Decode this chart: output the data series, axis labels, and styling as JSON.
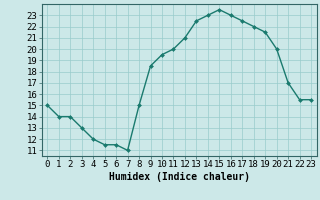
{
  "x": [
    0,
    1,
    2,
    3,
    4,
    5,
    6,
    7,
    8,
    9,
    10,
    11,
    12,
    13,
    14,
    15,
    16,
    17,
    18,
    19,
    20,
    21,
    22,
    23
  ],
  "y": [
    15,
    14,
    14,
    13,
    12,
    11.5,
    11.5,
    11,
    15,
    18.5,
    19.5,
    20,
    21,
    22.5,
    23,
    23.5,
    23,
    22.5,
    22,
    21.5,
    20,
    17,
    15.5,
    15.5
  ],
  "line_color": "#1a7a6e",
  "marker_color": "#1a7a6e",
  "bg_color": "#cce8e8",
  "grid_color": "#99cccc",
  "xlabel": "Humidex (Indice chaleur)",
  "ylabel_ticks": [
    11,
    12,
    13,
    14,
    15,
    16,
    17,
    18,
    19,
    20,
    21,
    22,
    23
  ],
  "xlim": [
    -0.5,
    23.5
  ],
  "ylim": [
    10.5,
    24.0
  ],
  "xlabel_fontsize": 7,
  "tick_fontsize": 6.5
}
